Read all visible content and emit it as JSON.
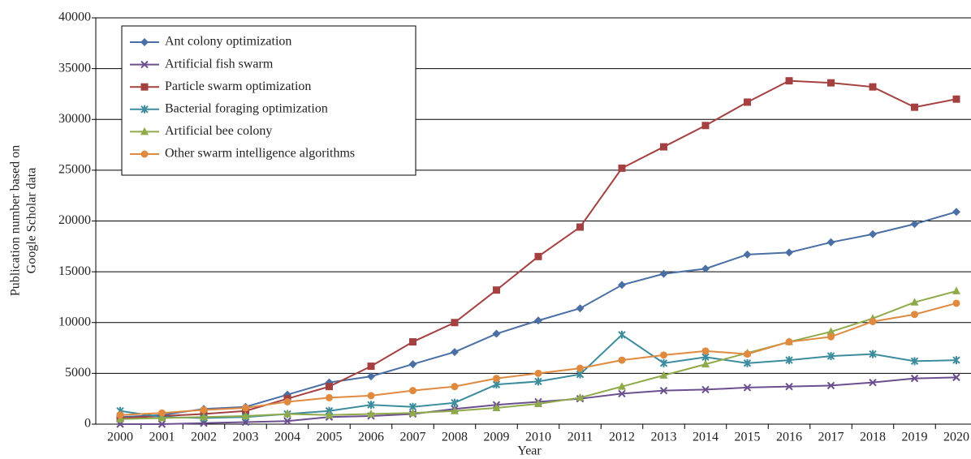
{
  "chart_data": {
    "type": "line",
    "ylabel": [
      "Publication number based on",
      "Google Scholar data"
    ],
    "xlabel": "Year",
    "categories": [
      "2000",
      "2001",
      "2002",
      "2003",
      "2004",
      "2005",
      "2006",
      "2007",
      "2008",
      "2009",
      "2010",
      "2011",
      "2012",
      "2013",
      "2014",
      "2015",
      "2016",
      "2017",
      "2018",
      "2019",
      "2020"
    ],
    "ylim": [
      0,
      40000
    ],
    "yticks": [
      0,
      5000,
      10000,
      15000,
      20000,
      25000,
      30000,
      35000,
      40000
    ],
    "grid": true,
    "legend": "upper left",
    "series": [
      {
        "name": "Ant colony optimization",
        "color": "#4a6fa5",
        "marker": "diamond",
        "values": [
          700,
          900,
          1500,
          1700,
          2900,
          4100,
          4700,
          5900,
          7100,
          8900,
          10200,
          11400,
          13700,
          14800,
          15300,
          16700,
          16900,
          17900,
          18700,
          19700,
          20900
        ]
      },
      {
        "name": "Artificial fish swarm",
        "color": "#6b4f8f",
        "marker": "x",
        "values": [
          0,
          0,
          100,
          200,
          300,
          700,
          800,
          1000,
          1500,
          1900,
          2200,
          2500,
          3000,
          3300,
          3400,
          3600,
          3700,
          3800,
          4100,
          4500,
          4600
        ]
      },
      {
        "name": "Particle swarm optimization",
        "color": "#a54040",
        "marker": "square",
        "values": [
          600,
          800,
          1000,
          1300,
          2500,
          3700,
          5700,
          8100,
          10000,
          13200,
          16500,
          19400,
          25200,
          27300,
          29400,
          31700,
          33800,
          33600,
          33200,
          31200,
          32000
        ]
      },
      {
        "name": "Bacterial foraging optimization",
        "color": "#3c8c9e",
        "marker": "star",
        "values": [
          1300,
          700,
          600,
          700,
          1000,
          1300,
          1900,
          1700,
          2100,
          3900,
          4200,
          4900,
          8800,
          6000,
          6600,
          6000,
          6300,
          6700,
          6900,
          6200,
          6300
        ]
      },
      {
        "name": "Artificial bee colony",
        "color": "#8faa4a",
        "marker": "triangle",
        "values": [
          500,
          600,
          700,
          800,
          1000,
          900,
          1000,
          1100,
          1300,
          1600,
          2000,
          2600,
          3700,
          4800,
          5900,
          7000,
          8100,
          9100,
          10400,
          12000,
          13100
        ]
      },
      {
        "name": "Other swarm intelligence algorithms",
        "color": "#e08a40",
        "marker": "circle",
        "values": [
          900,
          1100,
          1400,
          1600,
          2200,
          2600,
          2800,
          3300,
          3700,
          4500,
          5000,
          5500,
          6300,
          6800,
          7200,
          6900,
          8100,
          8600,
          10100,
          10800,
          11900
        ]
      }
    ]
  }
}
